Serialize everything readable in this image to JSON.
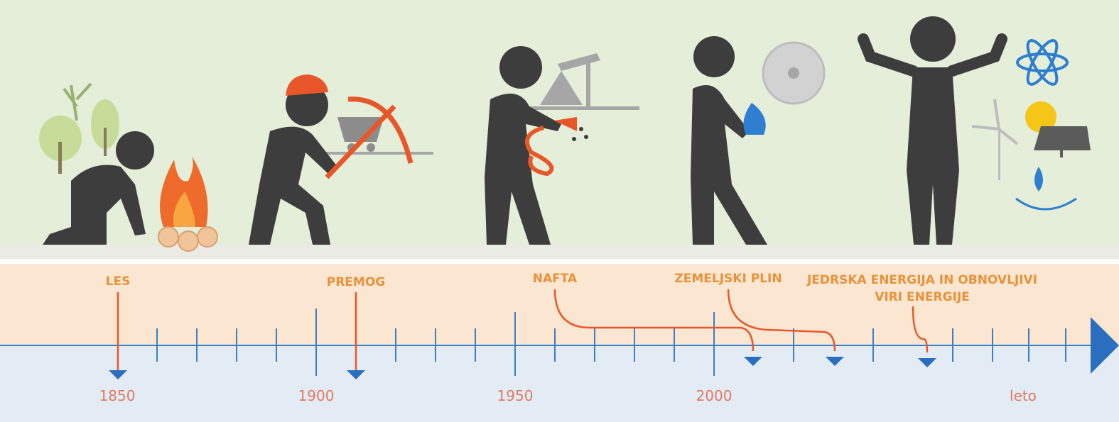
{
  "timeline": {
    "eras": [
      [
        "LES"
      ],
      [
        "PREMOG"
      ],
      [
        "NAFTA"
      ],
      [
        "ZEMELJSKI PLIN"
      ],
      [
        "JEDRSKA ENERGIJA IN OBNOVLJIVI",
        "VIRI ENERGIJE"
      ]
    ],
    "year_labels": [
      "1850",
      "1900",
      "1950",
      "2000"
    ],
    "axis_title": "leto"
  }
}
